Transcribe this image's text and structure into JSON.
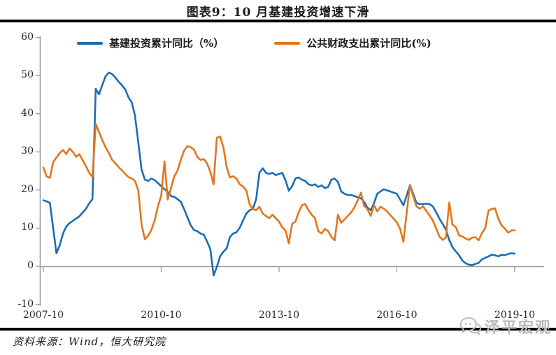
{
  "chart": {
    "title": "图表9：10 月基建投资增速下滑",
    "source_note": "资料来源：Wind，恒大研究院",
    "watermark": "泽平宏观"
  },
  "chart_data": {
    "type": "line",
    "title": "图表9：10 月基建投资增速下滑",
    "x_interval": "monthly",
    "x_start": "2007-10",
    "x_end": "2019-10",
    "x_tick_labels": [
      "2007-10",
      "2010-10",
      "2013-10",
      "2016-10",
      "2019-10"
    ],
    "y_ticks": [
      60,
      50,
      40,
      30,
      20,
      10,
      0,
      -10
    ],
    "ylim": [
      -10,
      60
    ],
    "grid": false,
    "legend_position": "top",
    "axis_color": "#9b9b9b",
    "series": [
      {
        "name": "基建投资累计同比（%）",
        "color": "#1b6cb4",
        "values": [
          17.3,
          17.0,
          16.6,
          10.0,
          3.4,
          5.5,
          8.6,
          10.4,
          11.3,
          11.9,
          12.5,
          13.1,
          14.1,
          15.0,
          16.5,
          17.6,
          46.5,
          45.1,
          47.5,
          49.8,
          50.8,
          50.4,
          49.5,
          48.4,
          47.5,
          46.4,
          44.3,
          43.0,
          39.5,
          32.5,
          25.4,
          22.7,
          22.4,
          23.0,
          22.6,
          21.8,
          21.0,
          20.2,
          19.5,
          18.4,
          18.2,
          17.6,
          16.9,
          15.0,
          12.9,
          10.8,
          9.5,
          9.2,
          8.6,
          8.3,
          6.5,
          4.5,
          -2.4,
          -0.2,
          2.6,
          3.8,
          4.7,
          7.7,
          8.6,
          8.9,
          10.1,
          12.0,
          13.8,
          14.7,
          15.0,
          17.5,
          24.5,
          25.7,
          24.5,
          24.2,
          24.5,
          23.9,
          24.2,
          24.5,
          22.5,
          19.8,
          21.0,
          23.0,
          23.3,
          22.7,
          22.4,
          21.5,
          21.2,
          21.5,
          20.8,
          21.2,
          20.5,
          20.8,
          22.7,
          23.0,
          22.1,
          19.6,
          19.0,
          18.7,
          18.7,
          18.4,
          18.1,
          17.8,
          16.9,
          15.4,
          14.7,
          16.5,
          19.0,
          19.6,
          20.2,
          19.9,
          19.6,
          19.3,
          19.0,
          17.5,
          16.0,
          18.5,
          21.3,
          19.0,
          16.6,
          16.3,
          16.3,
          16.4,
          16.3,
          15.7,
          14.2,
          12.5,
          11.1,
          9.6,
          6.9,
          5.0,
          3.9,
          2.9,
          1.5,
          0.8,
          0.4,
          0.3,
          0.6,
          0.9,
          1.8,
          2.2,
          2.6,
          3.0,
          2.9,
          2.6,
          3.0,
          2.9,
          3.2,
          3.4,
          3.3
        ]
      },
      {
        "name": "公共财政支出累计同比(%)",
        "color": "#e2751e",
        "values": [
          25.9,
          23.5,
          23.2,
          27.3,
          28.5,
          29.7,
          30.5,
          29.4,
          30.9,
          30.0,
          28.7,
          29.4,
          27.8,
          26.3,
          24.5,
          23.4,
          37.3,
          35.2,
          33.1,
          31.2,
          29.7,
          27.9,
          27.0,
          26.0,
          25.1,
          24.2,
          23.4,
          23.0,
          22.4,
          19.9,
          11.0,
          7.1,
          8.0,
          9.5,
          12.0,
          15.7,
          18.5,
          27.5,
          17.5,
          20.5,
          23.6,
          25.1,
          27.9,
          30.3,
          31.5,
          31.2,
          30.6,
          28.7,
          27.9,
          28.1,
          27.0,
          24.8,
          21.5,
          33.7,
          34.0,
          31.2,
          26.0,
          23.3,
          23.6,
          23.0,
          21.5,
          20.9,
          19.9,
          16.3,
          15.0,
          14.7,
          15.6,
          13.8,
          13.2,
          12.6,
          13.5,
          12.6,
          11.7,
          10.2,
          9.3,
          6.0,
          11.1,
          11.7,
          14.1,
          16.0,
          16.3,
          14.7,
          13.5,
          12.6,
          9.2,
          8.6,
          9.8,
          9.2,
          7.7,
          6.8,
          13.5,
          11.4,
          12.3,
          13.2,
          14.1,
          15.4,
          17.2,
          19.3,
          15.8,
          15.0,
          13.2,
          16.0,
          14.4,
          15.6,
          15.1,
          14.4,
          13.4,
          12.5,
          11.5,
          9.8,
          6.4,
          14.0,
          21.3,
          18.4,
          15.7,
          15.1,
          15.7,
          14.5,
          13.3,
          12.0,
          9.9,
          7.8,
          6.9,
          7.5,
          16.7,
          10.9,
          10.3,
          8.1,
          7.8,
          7.3,
          6.9,
          7.5,
          7.6,
          6.8,
          8.7,
          10.0,
          14.6,
          15.0,
          15.2,
          12.5,
          10.7,
          9.9,
          8.8,
          9.4,
          9.4
        ]
      }
    ]
  }
}
